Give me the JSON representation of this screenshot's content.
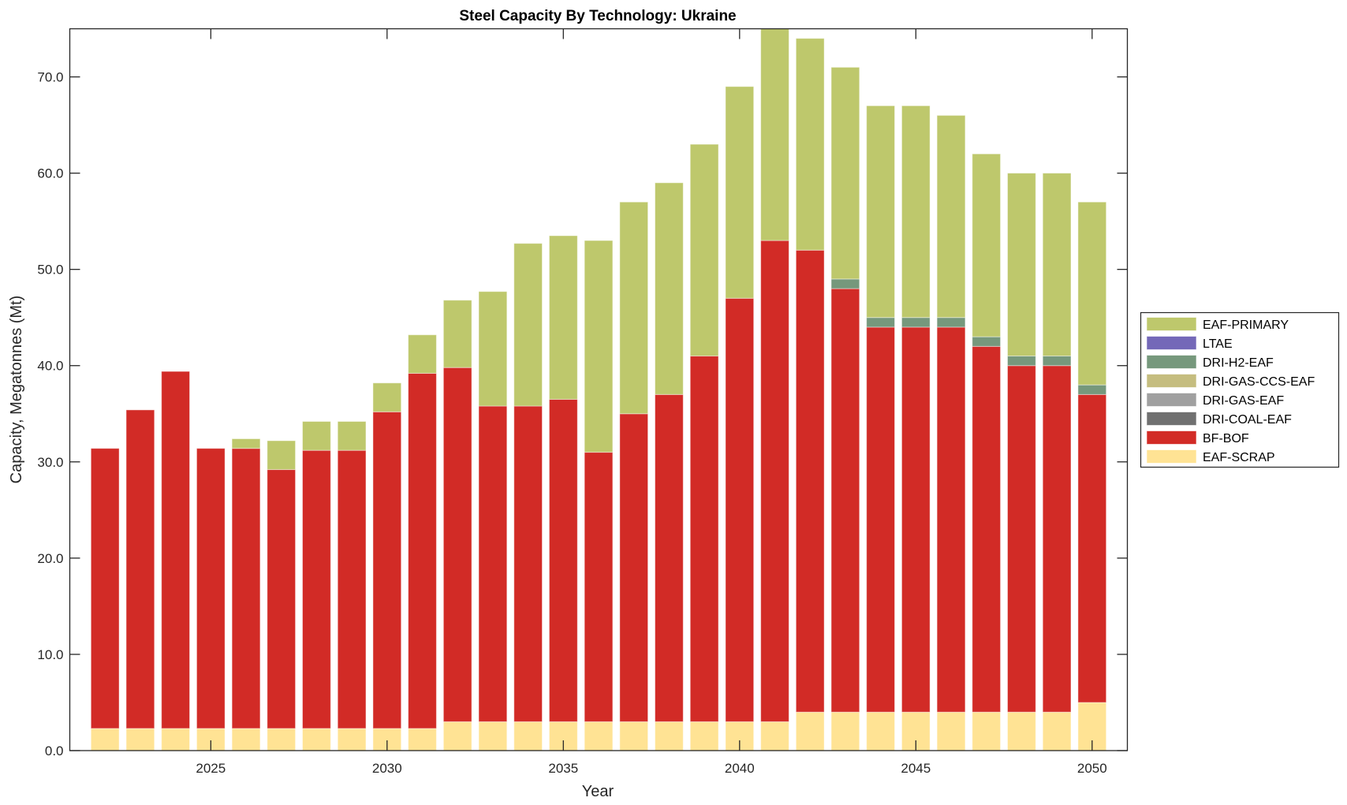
{
  "chart_data": {
    "type": "bar",
    "stacked": true,
    "title": "Steel Capacity By Technology: Ukraine",
    "xlabel": "Year",
    "ylabel": "Capacity, Megatonnes (Mt)",
    "xlim": [
      2021,
      2051
    ],
    "ylim": [
      0,
      75
    ],
    "xticks": [
      2025,
      2030,
      2035,
      2040,
      2045,
      2050
    ],
    "xtick_labels": [
      "2025",
      "2030",
      "2035",
      "2040",
      "2045",
      "2050"
    ],
    "yticks": [
      0,
      10,
      20,
      30,
      40,
      50,
      60,
      70
    ],
    "ytick_labels": [
      "0.0",
      "10.0",
      "20.0",
      "30.0",
      "40.0",
      "50.0",
      "60.0",
      "70.0"
    ],
    "grid": false,
    "legend_position": "right",
    "x": [
      2022,
      2023,
      2024,
      2025,
      2026,
      2027,
      2028,
      2029,
      2030,
      2031,
      2032,
      2033,
      2034,
      2035,
      2036,
      2037,
      2038,
      2039,
      2040,
      2041,
      2042,
      2043,
      2044,
      2045,
      2046,
      2047,
      2048,
      2049,
      2050
    ],
    "series": [
      {
        "name": "EAF-SCRAP",
        "color": "#FFE394",
        "values": [
          2.3,
          2.3,
          2.3,
          2.3,
          2.3,
          2.3,
          2.3,
          2.3,
          2.3,
          2.3,
          3.0,
          3.0,
          3.0,
          3.0,
          3.0,
          3.0,
          3.0,
          3.0,
          3.0,
          3.0,
          4.0,
          4.0,
          4.0,
          4.0,
          4.0,
          4.0,
          4.0,
          4.0,
          5.0
        ]
      },
      {
        "name": "BF-BOF",
        "color": "#D22B26",
        "values": [
          29.1,
          33.1,
          37.1,
          29.1,
          29.1,
          26.9,
          28.9,
          28.9,
          32.9,
          36.9,
          36.8,
          32.8,
          32.8,
          33.5,
          28.0,
          32.0,
          34.0,
          38.0,
          44.0,
          50.0,
          48.0,
          44.0,
          40.0,
          40.0,
          40.0,
          38.0,
          36.0,
          36.0,
          32.0
        ]
      },
      {
        "name": "DRI-COAL-EAF",
        "color": "#707070",
        "values": [
          0,
          0,
          0,
          0,
          0,
          0,
          0,
          0,
          0,
          0,
          0,
          0,
          0,
          0,
          0,
          0,
          0,
          0,
          0,
          0,
          0,
          0,
          0,
          0,
          0,
          0,
          0,
          0,
          0
        ]
      },
      {
        "name": "DRI-GAS-EAF",
        "color": "#A0A0A0",
        "values": [
          0,
          0,
          0,
          0,
          0,
          0,
          0,
          0,
          0,
          0,
          0,
          0,
          0,
          0,
          0,
          0,
          0,
          0,
          0,
          0,
          0,
          0,
          0,
          0,
          0,
          0,
          0,
          0,
          0
        ]
      },
      {
        "name": "DRI-GAS-CCS-EAF",
        "color": "#C5BD7F",
        "values": [
          0,
          0,
          0,
          0,
          0,
          0,
          0,
          0,
          0,
          0,
          0,
          0,
          0,
          0,
          0,
          0,
          0,
          0,
          0,
          0,
          0,
          0,
          0,
          0,
          0,
          0,
          0,
          0,
          0
        ]
      },
      {
        "name": "DRI-H2-EAF",
        "color": "#76987C",
        "values": [
          0,
          0,
          0,
          0,
          0,
          0,
          0,
          0,
          0,
          0,
          0,
          0,
          0,
          0,
          0,
          0,
          0,
          0,
          0,
          0,
          0,
          1.0,
          1.0,
          1.0,
          1.0,
          1.0,
          1.0,
          1.0,
          1.0
        ]
      },
      {
        "name": "LTAE",
        "color": "#7468B8",
        "values": [
          0,
          0,
          0,
          0,
          0,
          0,
          0,
          0,
          0,
          0,
          0,
          0,
          0,
          0,
          0,
          0,
          0,
          0,
          0,
          0,
          0,
          0,
          0,
          0,
          0,
          0,
          0,
          0,
          0
        ]
      },
      {
        "name": "EAF-PRIMARY",
        "color": "#BEC86C",
        "values": [
          0,
          0,
          0,
          0,
          1.0,
          3.0,
          3.0,
          3.0,
          3.0,
          4.0,
          7.0,
          11.9,
          16.9,
          17.0,
          22.0,
          22.0,
          22.0,
          22.0,
          22.0,
          22.0,
          22.0,
          22.0,
          22.0,
          22.0,
          21.0,
          19.0,
          19.0,
          19.0,
          19.0
        ]
      }
    ],
    "legend_order": [
      "EAF-PRIMARY",
      "LTAE",
      "DRI-H2-EAF",
      "DRI-GAS-CCS-EAF",
      "DRI-GAS-EAF",
      "DRI-COAL-EAF",
      "BF-BOF",
      "EAF-SCRAP"
    ]
  }
}
